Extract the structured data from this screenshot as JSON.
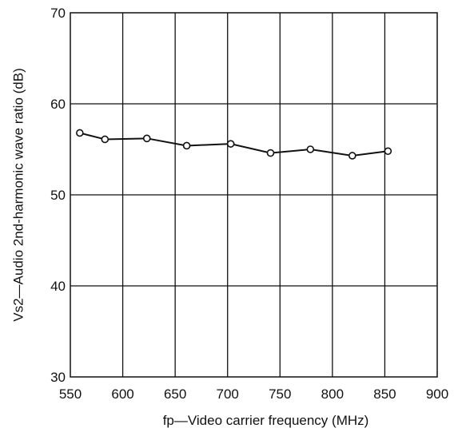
{
  "chart_data": {
    "type": "line",
    "title": "",
    "xlabel": "fp—Video carrier frequency (MHz)",
    "ylabel": "Vs2—Audio 2nd-harmonic wave ratio (dB)",
    "xlim": [
      550,
      900
    ],
    "ylim": [
      30,
      70
    ],
    "xticks": [
      550,
      600,
      650,
      700,
      750,
      800,
      850,
      900
    ],
    "yticks": [
      30,
      40,
      50,
      60,
      70
    ],
    "xtick_labels": [
      "550",
      "600",
      "650",
      "700",
      "750",
      "800",
      "850",
      "900"
    ],
    "ytick_labels": [
      "30",
      "40",
      "50",
      "60",
      "70"
    ],
    "grid": true,
    "series": [
      {
        "x": [
          559,
          583,
          623,
          661,
          703,
          741,
          779,
          819,
          853
        ],
        "y": [
          56.8,
          56.1,
          56.2,
          55.4,
          55.6,
          54.6,
          55.0,
          54.3,
          54.8
        ],
        "marker": "open-circle",
        "color": "#111111"
      }
    ]
  }
}
